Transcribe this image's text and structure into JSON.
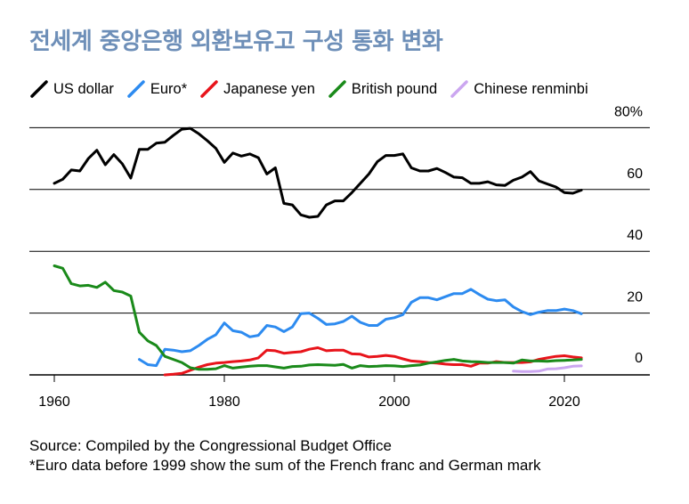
{
  "chart_data": {
    "type": "line",
    "title": "전세계 중앙은행 외환보유고 구성 통화 변화",
    "xlabel": "",
    "ylabel": "",
    "xlim": [
      1957,
      2031
    ],
    "ylim": [
      0,
      80
    ],
    "x_ticks": [
      1960,
      1980,
      2000,
      2020
    ],
    "x_tick_labels": [
      "1960",
      "1980",
      "2000",
      "2020"
    ],
    "y_gridlines": [
      0,
      20,
      40,
      60,
      80
    ],
    "y_tick_labels": [
      {
        "value": 80,
        "label": "80%"
      },
      {
        "value": 60,
        "label": "60"
      },
      {
        "value": 40,
        "label": "40"
      },
      {
        "value": 20,
        "label": "20"
      },
      {
        "value": 0,
        "label": "0"
      }
    ],
    "legend_position": "top",
    "series": [
      {
        "name": "US dollar",
        "color": "#000000",
        "points": [
          [
            1960,
            62
          ],
          [
            1961,
            63.3
          ],
          [
            1962,
            66.3
          ],
          [
            1963,
            66
          ],
          [
            1964,
            70
          ],
          [
            1965,
            72.7
          ],
          [
            1966,
            68
          ],
          [
            1967,
            71.3
          ],
          [
            1968,
            68.3
          ],
          [
            1969,
            63.7
          ],
          [
            1970,
            73
          ],
          [
            1971,
            73
          ],
          [
            1972,
            75
          ],
          [
            1973,
            75.3
          ],
          [
            1974,
            77.5
          ],
          [
            1975,
            79.5
          ],
          [
            1976,
            79.8
          ],
          [
            1977,
            78
          ],
          [
            1978,
            75.8
          ],
          [
            1979,
            73.3
          ],
          [
            1980,
            68.8
          ],
          [
            1981,
            71.8
          ],
          [
            1982,
            70.8
          ],
          [
            1983,
            71.5
          ],
          [
            1984,
            70.3
          ],
          [
            1985,
            65
          ],
          [
            1986,
            67
          ],
          [
            1987,
            55.5
          ],
          [
            1988,
            55
          ],
          [
            1989,
            51.8
          ],
          [
            1990,
            51
          ],
          [
            1991,
            51.3
          ],
          [
            1992,
            55
          ],
          [
            1993,
            56.3
          ],
          [
            1994,
            56.3
          ],
          [
            1995,
            59
          ],
          [
            1996,
            62
          ],
          [
            1997,
            65
          ],
          [
            1998,
            69
          ],
          [
            1999,
            71
          ],
          [
            2000,
            71
          ],
          [
            2001,
            71.5
          ],
          [
            2002,
            67
          ],
          [
            2003,
            66
          ],
          [
            2004,
            66
          ],
          [
            2005,
            66.8
          ],
          [
            2006,
            65.5
          ],
          [
            2007,
            64
          ],
          [
            2008,
            63.8
          ],
          [
            2009,
            62
          ],
          [
            2010,
            62
          ],
          [
            2011,
            62.5
          ],
          [
            2012,
            61.5
          ],
          [
            2013,
            61.3
          ],
          [
            2014,
            63
          ],
          [
            2015,
            64
          ],
          [
            2016,
            65.8
          ],
          [
            2017,
            62.8
          ],
          [
            2018,
            61.8
          ],
          [
            2019,
            60.8
          ],
          [
            2020,
            59
          ],
          [
            2021,
            58.8
          ],
          [
            2022,
            59.8
          ]
        ]
      },
      {
        "name": "Euro*",
        "color": "#2d8bf0",
        "points": [
          [
            1970,
            5
          ],
          [
            1971,
            3.3
          ],
          [
            1972,
            3
          ],
          [
            1973,
            8.3
          ],
          [
            1974,
            8
          ],
          [
            1975,
            7.5
          ],
          [
            1976,
            7.8
          ],
          [
            1977,
            9.5
          ],
          [
            1978,
            11.5
          ],
          [
            1979,
            13
          ],
          [
            1980,
            16.8
          ],
          [
            1981,
            14.3
          ],
          [
            1982,
            13.8
          ],
          [
            1983,
            12.3
          ],
          [
            1984,
            12.8
          ],
          [
            1985,
            16
          ],
          [
            1986,
            15.5
          ],
          [
            1987,
            14
          ],
          [
            1988,
            15.5
          ],
          [
            1989,
            19.8
          ],
          [
            1990,
            20
          ],
          [
            1991,
            18.3
          ],
          [
            1992,
            16.3
          ],
          [
            1993,
            16.5
          ],
          [
            1994,
            17.3
          ],
          [
            1995,
            19
          ],
          [
            1996,
            17
          ],
          [
            1997,
            16
          ],
          [
            1998,
            16
          ],
          [
            1999,
            18
          ],
          [
            2000,
            18.5
          ],
          [
            2001,
            19.5
          ],
          [
            2002,
            23.5
          ],
          [
            2003,
            25
          ],
          [
            2004,
            25
          ],
          [
            2005,
            24.3
          ],
          [
            2006,
            25.3
          ],
          [
            2007,
            26.3
          ],
          [
            2008,
            26.3
          ],
          [
            2009,
            27.7
          ],
          [
            2010,
            26
          ],
          [
            2011,
            24.5
          ],
          [
            2012,
            24
          ],
          [
            2013,
            24.3
          ],
          [
            2014,
            22
          ],
          [
            2015,
            20.5
          ],
          [
            2016,
            19.5
          ],
          [
            2017,
            20.3
          ],
          [
            2018,
            20.8
          ],
          [
            2019,
            20.8
          ],
          [
            2020,
            21.3
          ],
          [
            2021,
            20.8
          ],
          [
            2022,
            19.8
          ]
        ]
      },
      {
        "name": "Japanese yen",
        "color": "#e8141b",
        "points": [
          [
            1973,
            0
          ],
          [
            1974,
            0.2
          ],
          [
            1975,
            0.5
          ],
          [
            1976,
            1.5
          ],
          [
            1977,
            2.5
          ],
          [
            1978,
            3.3
          ],
          [
            1979,
            3.8
          ],
          [
            1980,
            4
          ],
          [
            1981,
            4.3
          ],
          [
            1982,
            4.5
          ],
          [
            1983,
            4.8
          ],
          [
            1984,
            5.5
          ],
          [
            1985,
            8
          ],
          [
            1986,
            7.8
          ],
          [
            1987,
            7
          ],
          [
            1988,
            7.3
          ],
          [
            1989,
            7.5
          ],
          [
            1990,
            8.3
          ],
          [
            1991,
            8.8
          ],
          [
            1992,
            7.8
          ],
          [
            1993,
            8
          ],
          [
            1994,
            8
          ],
          [
            1995,
            6.8
          ],
          [
            1996,
            6.7
          ],
          [
            1997,
            5.8
          ],
          [
            1998,
            6
          ],
          [
            1999,
            6.3
          ],
          [
            2000,
            6
          ],
          [
            2001,
            5.2
          ],
          [
            2002,
            4.5
          ],
          [
            2003,
            4.3
          ],
          [
            2004,
            4
          ],
          [
            2005,
            3.8
          ],
          [
            2006,
            3.5
          ],
          [
            2007,
            3.3
          ],
          [
            2008,
            3.3
          ],
          [
            2009,
            2.8
          ],
          [
            2010,
            3.8
          ],
          [
            2011,
            3.8
          ],
          [
            2012,
            4.3
          ],
          [
            2013,
            4
          ],
          [
            2014,
            4
          ],
          [
            2015,
            4
          ],
          [
            2016,
            4.2
          ],
          [
            2017,
            5
          ],
          [
            2018,
            5.5
          ],
          [
            2019,
            6
          ],
          [
            2020,
            6.2
          ],
          [
            2021,
            5.8
          ],
          [
            2022,
            5.5
          ]
        ]
      },
      {
        "name": "British pound",
        "color": "#1a8a1a",
        "points": [
          [
            1960,
            35.3
          ],
          [
            1961,
            34.5
          ],
          [
            1962,
            29.5
          ],
          [
            1963,
            28.8
          ],
          [
            1964,
            29
          ],
          [
            1965,
            28.3
          ],
          [
            1966,
            30
          ],
          [
            1967,
            27.3
          ],
          [
            1968,
            26.8
          ],
          [
            1969,
            25.5
          ],
          [
            1970,
            13.8
          ],
          [
            1971,
            11
          ],
          [
            1972,
            9.5
          ],
          [
            1973,
            6
          ],
          [
            1974,
            5
          ],
          [
            1975,
            4
          ],
          [
            1976,
            2.3
          ],
          [
            1977,
            1.8
          ],
          [
            1978,
            1.8
          ],
          [
            1979,
            2
          ],
          [
            1980,
            3
          ],
          [
            1981,
            2.2
          ],
          [
            1982,
            2.5
          ],
          [
            1983,
            2.8
          ],
          [
            1984,
            3
          ],
          [
            1985,
            3
          ],
          [
            1986,
            2.6
          ],
          [
            1987,
            2.2
          ],
          [
            1988,
            2.7
          ],
          [
            1989,
            2.8
          ],
          [
            1990,
            3.2
          ],
          [
            1991,
            3.3
          ],
          [
            1992,
            3.2
          ],
          [
            1993,
            3.1
          ],
          [
            1994,
            3.4
          ],
          [
            1995,
            2.2
          ],
          [
            1996,
            3
          ],
          [
            1997,
            2.7
          ],
          [
            1998,
            2.8
          ],
          [
            1999,
            3
          ],
          [
            2000,
            2.9
          ],
          [
            2001,
            2.7
          ],
          [
            2002,
            3
          ],
          [
            2003,
            3.2
          ],
          [
            2004,
            3.8
          ],
          [
            2005,
            4.2
          ],
          [
            2006,
            4.7
          ],
          [
            2007,
            5
          ],
          [
            2008,
            4.5
          ],
          [
            2009,
            4.3
          ],
          [
            2010,
            4.2
          ],
          [
            2011,
            4
          ],
          [
            2012,
            4
          ],
          [
            2013,
            4
          ],
          [
            2014,
            3.8
          ],
          [
            2015,
            4.8
          ],
          [
            2016,
            4.5
          ],
          [
            2017,
            4.5
          ],
          [
            2018,
            4.4
          ],
          [
            2019,
            4.6
          ],
          [
            2020,
            4.7
          ],
          [
            2021,
            4.8
          ],
          [
            2022,
            5
          ]
        ]
      },
      {
        "name": "Chinese renminbi",
        "color": "#cba6f0",
        "points": [
          [
            2014,
            1.2
          ],
          [
            2015,
            1.1
          ],
          [
            2016,
            1.1
          ],
          [
            2017,
            1.2
          ],
          [
            2018,
            1.9
          ],
          [
            2019,
            2
          ],
          [
            2020,
            2.3
          ],
          [
            2021,
            2.8
          ],
          [
            2022,
            2.9
          ]
        ]
      }
    ]
  },
  "footer": {
    "source": "Source: Compiled by the Congressional Budget Office",
    "note": "*Euro data before 1999 show the sum of the French franc and German mark"
  }
}
